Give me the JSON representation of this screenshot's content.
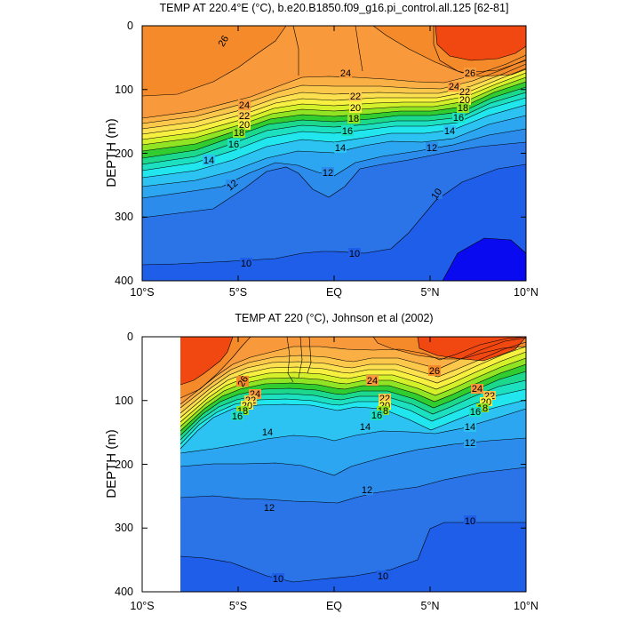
{
  "chart_data": [
    {
      "type": "contour",
      "title": "TEMP AT 220.4°E (°C), b.e20.B1850.f09_g16.pi_control.all.125 [62-81]",
      "ylabel": "DEPTH (m)",
      "xlabel": "",
      "x_ticks": [
        "10°S",
        "5°S",
        "EQ",
        "5°N",
        "10°N"
      ],
      "y_ticks": [
        "0",
        "100",
        "200",
        "300",
        "400"
      ],
      "xlim": [
        -10,
        10
      ],
      "ylim": [
        400,
        0
      ],
      "levels": [
        10,
        11,
        12,
        13,
        14,
        15,
        16,
        17,
        18,
        19,
        20,
        21,
        22,
        23,
        24,
        25,
        26,
        27
      ],
      "contour_labels": [
        "26",
        "24",
        "22",
        "20",
        "18",
        "16",
        "14",
        "12",
        "10"
      ],
      "thermocline_depth_20C": {
        "lat": [
          -10,
          -8,
          -6,
          -4,
          -2,
          0,
          2,
          4,
          6,
          8,
          10
        ],
        "depth": [
          185,
          175,
          160,
          145,
          130,
          125,
          135,
          145,
          135,
          115,
          95
        ]
      },
      "isotherm_12C_depth": {
        "lat": [
          -10,
          -8,
          -6,
          -4,
          -2,
          0,
          2,
          4,
          6,
          8,
          10
        ],
        "depth": [
          295,
          275,
          250,
          215,
          240,
          265,
          215,
          195,
          185,
          170,
          165
        ]
      },
      "isotherm_10C_depth": {
        "lat": [
          -10,
          -8,
          -6,
          -4,
          -2,
          0,
          2,
          4,
          6,
          8,
          10
        ],
        "depth": [
          375,
          370,
          360,
          350,
          355,
          360,
          355,
          330,
          260,
          215,
          195
        ]
      }
    },
    {
      "type": "contour",
      "title": "TEMP AT 220 (°C), Johnson et al (2002)",
      "ylabel": "DEPTH (m)",
      "xlabel": "",
      "x_ticks": [
        "10°S",
        "5°S",
        "EQ",
        "5°N",
        "10°N"
      ],
      "y_ticks": [
        "0",
        "100",
        "200",
        "300",
        "400"
      ],
      "xlim": [
        -10,
        10
      ],
      "ylim": [
        400,
        0
      ],
      "data_xlim": [
        -8,
        10
      ],
      "levels": [
        10,
        11,
        12,
        13,
        14,
        15,
        16,
        17,
        18,
        19,
        20,
        21,
        22,
        23,
        24,
        25,
        26,
        27
      ],
      "contour_labels": [
        "26",
        "24",
        "22",
        "20",
        "18",
        "16",
        "14",
        "12",
        "10"
      ],
      "thermocline_depth_20C": {
        "lat": [
          -8,
          -6,
          -4,
          -2,
          0,
          2,
          4,
          6,
          8,
          10
        ],
        "depth": [
          165,
          140,
          125,
          115,
          110,
          115,
          135,
          125,
          95,
          75
        ]
      },
      "isotherm_12C_depth": {
        "lat": [
          -8,
          -6,
          -4,
          -2,
          0,
          2,
          4,
          6,
          8,
          10
        ],
        "depth": [
          275,
          270,
          265,
          265,
          275,
          255,
          240,
          225,
          215,
          205
        ]
      },
      "isotherm_10C_depth": {
        "lat": [
          -8,
          -6,
          -4,
          -2,
          0,
          2,
          4,
          6,
          8,
          10
        ],
        "depth": [
          345,
          355,
          375,
          385,
          380,
          370,
          300,
          300,
          300,
          300
        ]
      }
    }
  ],
  "colors": {
    "t27": "#f04810",
    "t26": "#f58a2a",
    "t25": "#f89a3c",
    "t24": "#fab044",
    "t23": "#fcc84c",
    "t22": "#fde050",
    "t21": "#f8f040",
    "t20": "#d4f02a",
    "t19": "#90e424",
    "t18": "#30cc30",
    "t17": "#1cd88c",
    "t16": "#1ce0c0",
    "t15": "#22e6ee",
    "t14": "#2cc2f2",
    "t13": "#2ca6f0",
    "t12": "#2c8cec",
    "t11": "#2a74e8",
    "t10": "#1e5ee8",
    "t9": "#0a0af0"
  }
}
